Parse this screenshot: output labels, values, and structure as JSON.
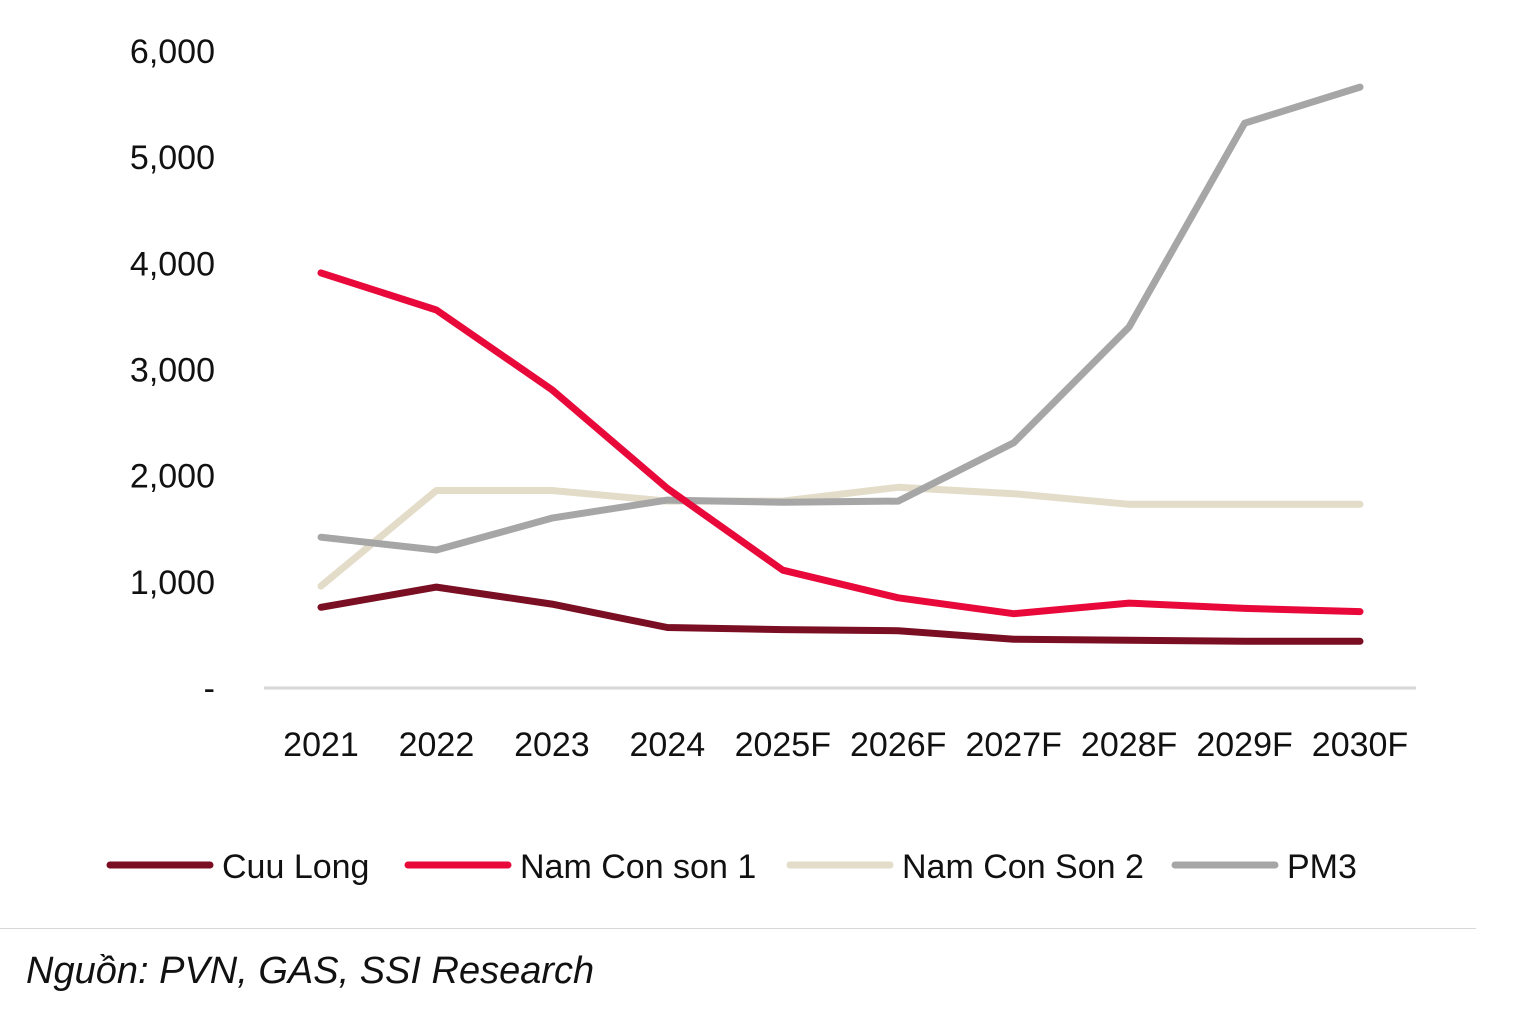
{
  "chart_data": {
    "type": "line",
    "title": "",
    "xlabel": "",
    "ylabel": "",
    "categories": [
      "2021",
      "2022",
      "2023",
      "2024",
      "2025F",
      "2026F",
      "2027F",
      "2028F",
      "2029F",
      "2030F"
    ],
    "ylim": [
      0,
      6000
    ],
    "yticks": [
      {
        "value": 0,
        "label": "-"
      },
      {
        "value": 1000,
        "label": "1,000"
      },
      {
        "value": 2000,
        "label": "2,000"
      },
      {
        "value": 3000,
        "label": "3,000"
      },
      {
        "value": 4000,
        "label": "4,000"
      },
      {
        "value": 5000,
        "label": "5,000"
      },
      {
        "value": 6000,
        "label": "6,000"
      }
    ],
    "grid": false,
    "legend_position": "bottom",
    "series": [
      {
        "name": "Cuu Long",
        "color": "#7a0e22",
        "values": [
          760,
          950,
          790,
          570,
          550,
          540,
          460,
          450,
          440,
          440
        ]
      },
      {
        "name": "Nam Con son 1",
        "color": "#e8093a",
        "values": [
          3910,
          3560,
          2810,
          1880,
          1110,
          850,
          700,
          800,
          750,
          720
        ]
      },
      {
        "name": "Nam Con Son 2",
        "color": "#e2dcc8",
        "values": [
          960,
          1860,
          1860,
          1760,
          1760,
          1890,
          1830,
          1730,
          1730,
          1730
        ]
      },
      {
        "name": "PM3",
        "color": "#a6a6a6",
        "values": [
          1420,
          1300,
          1600,
          1770,
          1750,
          1760,
          2310,
          3400,
          5320,
          5660
        ]
      }
    ]
  },
  "source": "Nguồn: PVN, GAS, SSI Research"
}
